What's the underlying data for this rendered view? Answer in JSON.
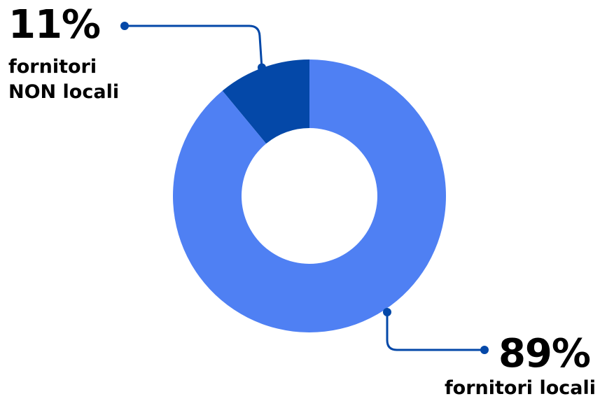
{
  "chart_data": {
    "type": "pie",
    "donut": true,
    "slices": [
      {
        "key": "nonlocal",
        "value": 11,
        "percent_label": "11%",
        "label_lines": [
          "fornitori",
          "NON locali"
        ],
        "color": "#0448a8"
      },
      {
        "key": "local",
        "value": 89,
        "percent_label": "89%",
        "label_lines": [
          "fornitori locali"
        ],
        "color": "#4f80f3"
      }
    ],
    "text_color": "#0b4aa2",
    "legend": "none"
  }
}
